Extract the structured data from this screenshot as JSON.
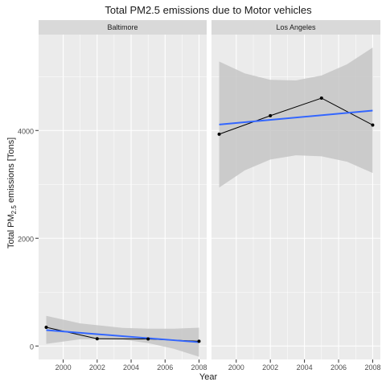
{
  "chart_data": {
    "type": "line",
    "title": "Total PM2.5 emissions due to Motor vehicles",
    "xlabel": "Year",
    "ylabel": {
      "prefix": "Total PM",
      "subscript": "2.5",
      "suffix": " emissions [Tons]"
    },
    "xlim": [
      1998.55,
      2008.45
    ],
    "ylim": [
      -250,
      5780
    ],
    "x_ticks": [
      2000,
      2002,
      2004,
      2006,
      2008
    ],
    "y_ticks": [
      0,
      2000,
      4000
    ],
    "grid": true,
    "facets": [
      {
        "name": "Baltimore",
        "series": {
          "x": [
            1999,
            2002,
            2005,
            2008
          ],
          "y": [
            347,
            134,
            130,
            88
          ]
        },
        "trend": {
          "x": [
            1999,
            2008
          ],
          "y": [
            295,
            70
          ]
        },
        "band": {
          "x": [
            1999,
            2001,
            2003.5,
            2005,
            2006.5,
            2008
          ],
          "upper": [
            560,
            420,
            335,
            320,
            320,
            340
          ],
          "lower": [
            40,
            125,
            120,
            55,
            -50,
            -200
          ]
        }
      },
      {
        "name": "Los Angeles",
        "series": {
          "x": [
            1999,
            2002,
            2005,
            2008
          ],
          "y": [
            3931,
            4274,
            4601,
            4101
          ]
        },
        "trend": {
          "x": [
            1999,
            2008
          ],
          "y": [
            4110,
            4370
          ]
        },
        "band": {
          "x": [
            1999,
            2000.5,
            2002,
            2003.5,
            2005,
            2006.5,
            2008
          ],
          "upper": [
            5280,
            5060,
            4940,
            4930,
            5020,
            5230,
            5540
          ],
          "lower": [
            2940,
            3260,
            3460,
            3540,
            3520,
            3420,
            3210
          ]
        }
      }
    ],
    "colors": {
      "panel_bg": "#ebebeb",
      "grid": "#ffffff",
      "strip_bg": "#d9d9d9",
      "band": "#c6c6c6",
      "trend": "#3366ff",
      "series": "#000000",
      "text": "#1a1a1a",
      "axis_text": "#4d4d4d"
    }
  }
}
